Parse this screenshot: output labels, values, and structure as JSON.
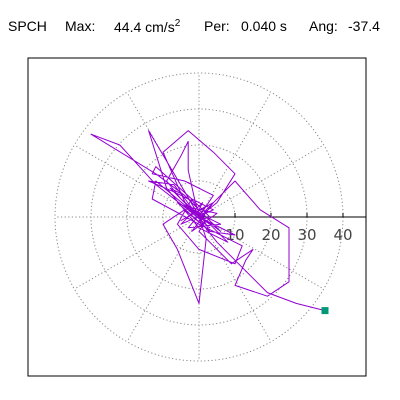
{
  "header": {
    "station": "SPCH",
    "max_label": "Max:",
    "max_value": "44.4 cm/s",
    "max_exponent": "2",
    "per_label": "Per:",
    "per_value": "0.040 s",
    "ang_label": "Ang:",
    "ang_value": "-37.4"
  },
  "chart_data": {
    "type": "line",
    "title": "SPCH   Max: 44.4 cm/s^2   Per: 0.040 s   Ang: -37.4",
    "projection": "polar (hodograph / particle motion)",
    "radial_ticks": [
      "10",
      "20",
      "30",
      "40"
    ],
    "radial_tick_values": [
      10,
      20,
      30,
      40
    ],
    "rings": [
      10,
      20,
      30,
      40
    ],
    "spokes_deg": [
      0,
      30,
      60,
      90,
      120,
      150,
      180,
      210,
      240,
      270,
      300,
      330
    ],
    "grid": true,
    "xlim": [
      -48,
      48
    ],
    "ylim": [
      -48,
      48
    ],
    "colors": {
      "trace": "#9400d3",
      "end_marker": "#009977",
      "grid": "#888888",
      "axis": "#000000"
    },
    "series": [
      {
        "points": [
          [
            1,
            0
          ],
          [
            -3,
            2
          ],
          [
            3,
            -3
          ],
          [
            -4,
            3
          ],
          [
            5,
            1
          ],
          [
            -2,
            -4
          ],
          [
            4,
            4
          ],
          [
            -5,
            -1
          ],
          [
            2,
            3
          ],
          [
            -3,
            -3
          ],
          [
            6,
            -2
          ],
          [
            -6,
            4
          ],
          [
            3,
            -4
          ],
          [
            -2,
            5
          ],
          [
            4,
            2
          ],
          [
            -5,
            -2
          ],
          [
            1,
            4
          ],
          [
            0,
            2
          ],
          [
            -4,
            6
          ],
          [
            -12,
            12
          ],
          [
            -30,
            23
          ],
          [
            -22,
            20
          ],
          [
            -12,
            9
          ],
          [
            -3,
            2
          ],
          [
            -10,
            18
          ],
          [
            -3,
            24
          ],
          [
            4,
            18
          ],
          [
            10,
            12
          ],
          [
            5,
            4
          ],
          [
            0,
            0
          ],
          [
            -12,
            10
          ],
          [
            -13,
            5
          ],
          [
            0,
            -2
          ],
          [
            12,
            -8
          ],
          [
            10,
            -13
          ],
          [
            0,
            -9
          ],
          [
            -6,
            -2
          ],
          [
            -2,
            5
          ],
          [
            -12,
            14
          ],
          [
            -13,
            12
          ],
          [
            -4,
            10
          ],
          [
            4,
            6
          ],
          [
            0,
            0
          ],
          [
            2,
            -6
          ],
          [
            0,
            -24
          ],
          [
            -6,
            -9
          ],
          [
            -10,
            -2
          ],
          [
            -4,
            2
          ],
          [
            3,
            -4
          ],
          [
            10,
            -5
          ],
          [
            0,
            0
          ],
          [
            -4,
            4
          ],
          [
            -8,
            8
          ],
          [
            -4,
            6
          ],
          [
            0,
            2
          ],
          [
            4,
            -2
          ],
          [
            6,
            -4
          ],
          [
            2,
            -1
          ],
          [
            -1,
            2
          ],
          [
            -14,
            24
          ],
          [
            -9,
            8
          ],
          [
            0,
            -3
          ],
          [
            8,
            -7
          ],
          [
            3,
            -2
          ],
          [
            0,
            0
          ],
          [
            -7,
            9
          ],
          [
            -14,
            10
          ],
          [
            -7,
            7
          ],
          [
            -1,
            4
          ],
          [
            3,
            0
          ],
          [
            0,
            -1
          ],
          [
            2,
            2
          ],
          [
            10,
            10
          ],
          [
            17,
            2
          ],
          [
            25,
            -3
          ],
          [
            25,
            -18
          ],
          [
            19,
            -22
          ],
          [
            10,
            -19
          ],
          [
            13,
            -12
          ],
          [
            15,
            -9
          ],
          [
            9,
            -13
          ],
          [
            3,
            -7
          ],
          [
            0,
            -4
          ],
          [
            2,
            -1
          ],
          [
            -5,
            5
          ],
          [
            -9,
            10
          ],
          [
            -5,
            17
          ],
          [
            -3,
            21
          ],
          [
            -3,
            13
          ],
          [
            -1,
            4
          ],
          [
            1,
            -2
          ],
          [
            5,
            -7
          ],
          [
            11,
            -13
          ],
          [
            19,
            -21
          ],
          [
            27,
            -24
          ],
          [
            35,
            -26
          ]
        ]
      }
    ],
    "end_point": [
      35,
      -26
    ]
  }
}
